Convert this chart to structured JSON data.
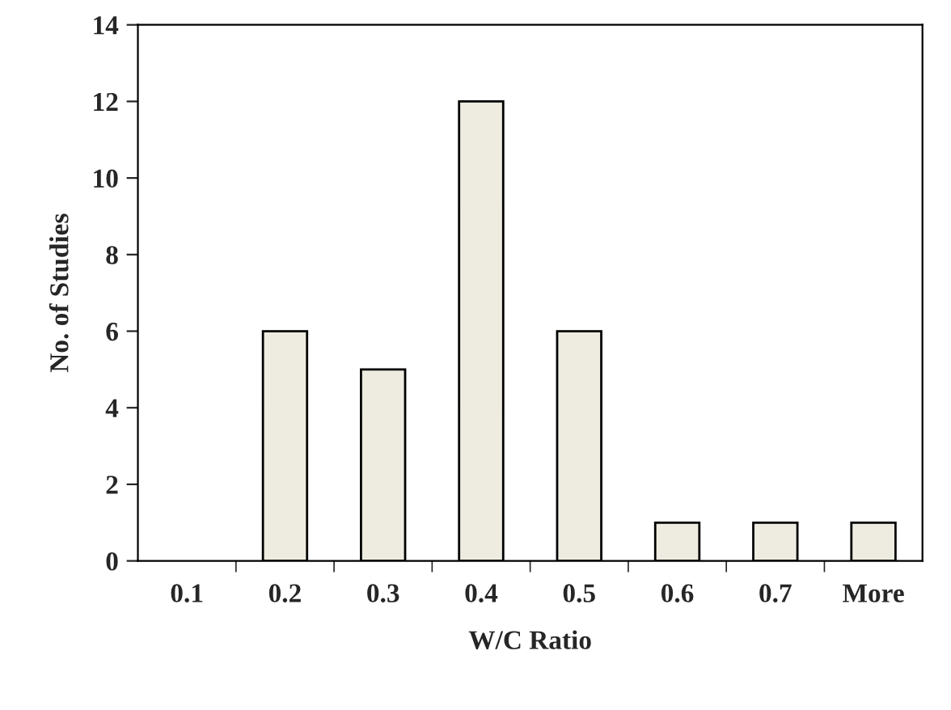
{
  "chart_data": {
    "type": "bar",
    "xlabel": "W/C Ratio",
    "ylabel": "No. of Studies",
    "categories": [
      "0.1",
      "0.2",
      "0.3",
      "0.4",
      "0.5",
      "0.6",
      "0.7",
      "More"
    ],
    "values": [
      0,
      6,
      5,
      12,
      6,
      1,
      1,
      1
    ],
    "color": "#eeece1",
    "ylim": [
      0,
      14
    ],
    "yticks": [
      0,
      2,
      4,
      6,
      8,
      10,
      12,
      14
    ],
    "grid": false
  }
}
